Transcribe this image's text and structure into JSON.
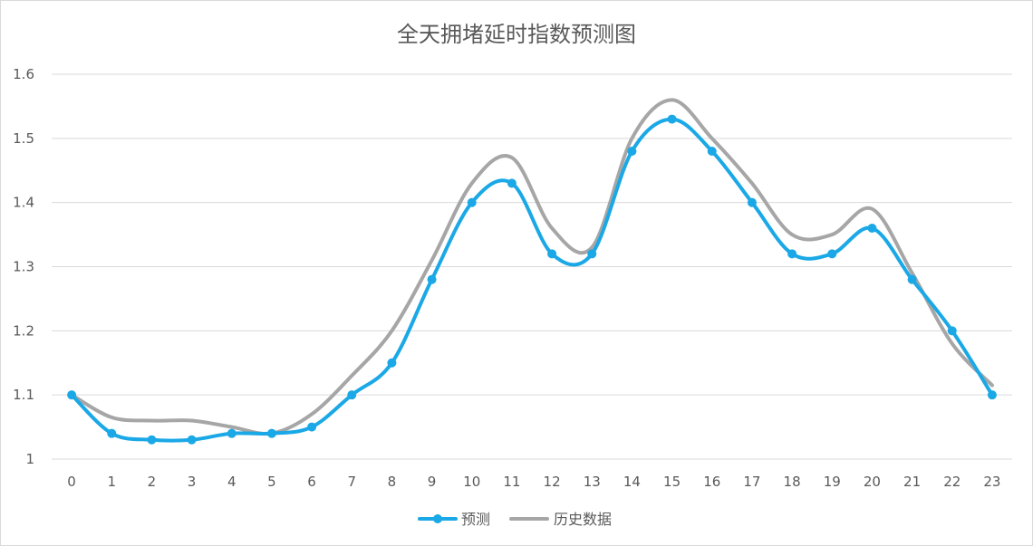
{
  "chart_data": {
    "type": "line",
    "title": "全天拥堵延时指数预测图",
    "xlabel": "",
    "ylabel": "",
    "categories": [
      "0",
      "1",
      "2",
      "3",
      "4",
      "5",
      "6",
      "7",
      "8",
      "9",
      "10",
      "11",
      "12",
      "13",
      "14",
      "15",
      "16",
      "17",
      "18",
      "19",
      "20",
      "21",
      "22",
      "23"
    ],
    "y_ticks": [
      "1",
      "1.1",
      "1.2",
      "1.3",
      "1.4",
      "1.5",
      "1.6"
    ],
    "ylim": [
      1.0,
      1.6
    ],
    "grid": true,
    "smooth": true,
    "legend_position": "bottom",
    "series": [
      {
        "name": "预测",
        "color": "#1aa8e6",
        "markers": true,
        "values": [
          1.1,
          1.04,
          1.03,
          1.03,
          1.04,
          1.04,
          1.05,
          1.1,
          1.15,
          1.28,
          1.4,
          1.43,
          1.32,
          1.32,
          1.48,
          1.53,
          1.48,
          1.4,
          1.32,
          1.32,
          1.36,
          1.28,
          1.2,
          1.1
        ]
      },
      {
        "name": "历史数据",
        "color": "#a6a6a6",
        "markers": false,
        "values": [
          1.1,
          1.065,
          1.06,
          1.06,
          1.05,
          1.04,
          1.07,
          1.13,
          1.2,
          1.31,
          1.43,
          1.47,
          1.36,
          1.33,
          1.5,
          1.56,
          1.5,
          1.43,
          1.35,
          1.35,
          1.39,
          1.29,
          1.18,
          1.115
        ]
      }
    ]
  }
}
